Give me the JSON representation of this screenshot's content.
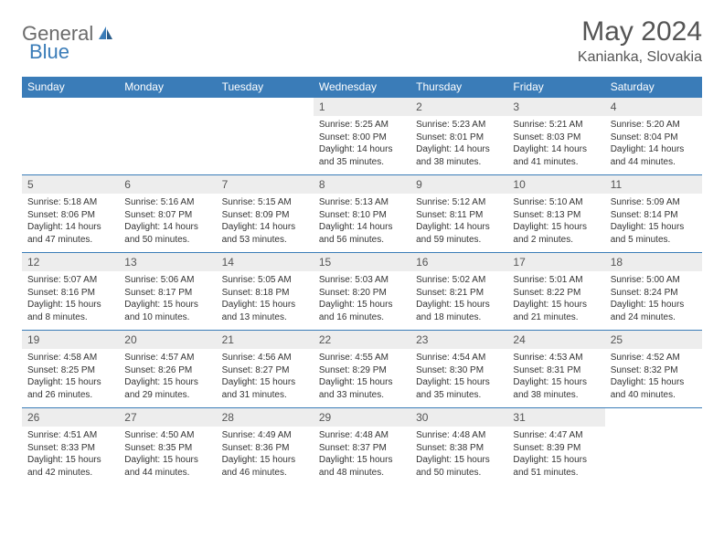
{
  "logo": {
    "part1": "General",
    "part2": "Blue"
  },
  "title": "May 2024",
  "location": "Kanianka, Slovakia",
  "colors": {
    "header_bg": "#3a7cb8",
    "header_text": "#ffffff",
    "daynum_bg": "#ededed",
    "border": "#3a7cb8",
    "title_color": "#555555",
    "logo_gray": "#6b6b6b",
    "logo_blue": "#3a7cb8"
  },
  "weekdays": [
    "Sunday",
    "Monday",
    "Tuesday",
    "Wednesday",
    "Thursday",
    "Friday",
    "Saturday"
  ],
  "weeks": [
    [
      null,
      null,
      null,
      {
        "n": "1",
        "sunrise": "Sunrise: 5:25 AM",
        "sunset": "Sunset: 8:00 PM",
        "day1": "Daylight: 14 hours",
        "day2": "and 35 minutes."
      },
      {
        "n": "2",
        "sunrise": "Sunrise: 5:23 AM",
        "sunset": "Sunset: 8:01 PM",
        "day1": "Daylight: 14 hours",
        "day2": "and 38 minutes."
      },
      {
        "n": "3",
        "sunrise": "Sunrise: 5:21 AM",
        "sunset": "Sunset: 8:03 PM",
        "day1": "Daylight: 14 hours",
        "day2": "and 41 minutes."
      },
      {
        "n": "4",
        "sunrise": "Sunrise: 5:20 AM",
        "sunset": "Sunset: 8:04 PM",
        "day1": "Daylight: 14 hours",
        "day2": "and 44 minutes."
      }
    ],
    [
      {
        "n": "5",
        "sunrise": "Sunrise: 5:18 AM",
        "sunset": "Sunset: 8:06 PM",
        "day1": "Daylight: 14 hours",
        "day2": "and 47 minutes."
      },
      {
        "n": "6",
        "sunrise": "Sunrise: 5:16 AM",
        "sunset": "Sunset: 8:07 PM",
        "day1": "Daylight: 14 hours",
        "day2": "and 50 minutes."
      },
      {
        "n": "7",
        "sunrise": "Sunrise: 5:15 AM",
        "sunset": "Sunset: 8:09 PM",
        "day1": "Daylight: 14 hours",
        "day2": "and 53 minutes."
      },
      {
        "n": "8",
        "sunrise": "Sunrise: 5:13 AM",
        "sunset": "Sunset: 8:10 PM",
        "day1": "Daylight: 14 hours",
        "day2": "and 56 minutes."
      },
      {
        "n": "9",
        "sunrise": "Sunrise: 5:12 AM",
        "sunset": "Sunset: 8:11 PM",
        "day1": "Daylight: 14 hours",
        "day2": "and 59 minutes."
      },
      {
        "n": "10",
        "sunrise": "Sunrise: 5:10 AM",
        "sunset": "Sunset: 8:13 PM",
        "day1": "Daylight: 15 hours",
        "day2": "and 2 minutes."
      },
      {
        "n": "11",
        "sunrise": "Sunrise: 5:09 AM",
        "sunset": "Sunset: 8:14 PM",
        "day1": "Daylight: 15 hours",
        "day2": "and 5 minutes."
      }
    ],
    [
      {
        "n": "12",
        "sunrise": "Sunrise: 5:07 AM",
        "sunset": "Sunset: 8:16 PM",
        "day1": "Daylight: 15 hours",
        "day2": "and 8 minutes."
      },
      {
        "n": "13",
        "sunrise": "Sunrise: 5:06 AM",
        "sunset": "Sunset: 8:17 PM",
        "day1": "Daylight: 15 hours",
        "day2": "and 10 minutes."
      },
      {
        "n": "14",
        "sunrise": "Sunrise: 5:05 AM",
        "sunset": "Sunset: 8:18 PM",
        "day1": "Daylight: 15 hours",
        "day2": "and 13 minutes."
      },
      {
        "n": "15",
        "sunrise": "Sunrise: 5:03 AM",
        "sunset": "Sunset: 8:20 PM",
        "day1": "Daylight: 15 hours",
        "day2": "and 16 minutes."
      },
      {
        "n": "16",
        "sunrise": "Sunrise: 5:02 AM",
        "sunset": "Sunset: 8:21 PM",
        "day1": "Daylight: 15 hours",
        "day2": "and 18 minutes."
      },
      {
        "n": "17",
        "sunrise": "Sunrise: 5:01 AM",
        "sunset": "Sunset: 8:22 PM",
        "day1": "Daylight: 15 hours",
        "day2": "and 21 minutes."
      },
      {
        "n": "18",
        "sunrise": "Sunrise: 5:00 AM",
        "sunset": "Sunset: 8:24 PM",
        "day1": "Daylight: 15 hours",
        "day2": "and 24 minutes."
      }
    ],
    [
      {
        "n": "19",
        "sunrise": "Sunrise: 4:58 AM",
        "sunset": "Sunset: 8:25 PM",
        "day1": "Daylight: 15 hours",
        "day2": "and 26 minutes."
      },
      {
        "n": "20",
        "sunrise": "Sunrise: 4:57 AM",
        "sunset": "Sunset: 8:26 PM",
        "day1": "Daylight: 15 hours",
        "day2": "and 29 minutes."
      },
      {
        "n": "21",
        "sunrise": "Sunrise: 4:56 AM",
        "sunset": "Sunset: 8:27 PM",
        "day1": "Daylight: 15 hours",
        "day2": "and 31 minutes."
      },
      {
        "n": "22",
        "sunrise": "Sunrise: 4:55 AM",
        "sunset": "Sunset: 8:29 PM",
        "day1": "Daylight: 15 hours",
        "day2": "and 33 minutes."
      },
      {
        "n": "23",
        "sunrise": "Sunrise: 4:54 AM",
        "sunset": "Sunset: 8:30 PM",
        "day1": "Daylight: 15 hours",
        "day2": "and 35 minutes."
      },
      {
        "n": "24",
        "sunrise": "Sunrise: 4:53 AM",
        "sunset": "Sunset: 8:31 PM",
        "day1": "Daylight: 15 hours",
        "day2": "and 38 minutes."
      },
      {
        "n": "25",
        "sunrise": "Sunrise: 4:52 AM",
        "sunset": "Sunset: 8:32 PM",
        "day1": "Daylight: 15 hours",
        "day2": "and 40 minutes."
      }
    ],
    [
      {
        "n": "26",
        "sunrise": "Sunrise: 4:51 AM",
        "sunset": "Sunset: 8:33 PM",
        "day1": "Daylight: 15 hours",
        "day2": "and 42 minutes."
      },
      {
        "n": "27",
        "sunrise": "Sunrise: 4:50 AM",
        "sunset": "Sunset: 8:35 PM",
        "day1": "Daylight: 15 hours",
        "day2": "and 44 minutes."
      },
      {
        "n": "28",
        "sunrise": "Sunrise: 4:49 AM",
        "sunset": "Sunset: 8:36 PM",
        "day1": "Daylight: 15 hours",
        "day2": "and 46 minutes."
      },
      {
        "n": "29",
        "sunrise": "Sunrise: 4:48 AM",
        "sunset": "Sunset: 8:37 PM",
        "day1": "Daylight: 15 hours",
        "day2": "and 48 minutes."
      },
      {
        "n": "30",
        "sunrise": "Sunrise: 4:48 AM",
        "sunset": "Sunset: 8:38 PM",
        "day1": "Daylight: 15 hours",
        "day2": "and 50 minutes."
      },
      {
        "n": "31",
        "sunrise": "Sunrise: 4:47 AM",
        "sunset": "Sunset: 8:39 PM",
        "day1": "Daylight: 15 hours",
        "day2": "and 51 minutes."
      },
      null
    ]
  ]
}
